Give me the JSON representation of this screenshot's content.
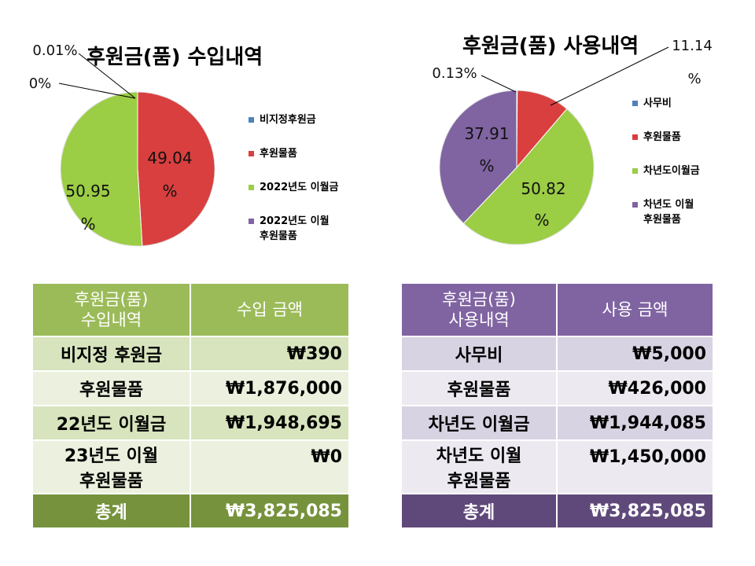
{
  "income_title": "후원금(품) 수입내역",
  "usage_title": "후원금(품) 사용내역",
  "chart_data": [
    {
      "type": "pie",
      "title": "후원금(품) 수입내역",
      "labels": [
        "비지정후원금",
        "후원물품",
        "2022년도 이월금",
        "2022년도 이월 후원물품"
      ],
      "values": [
        0.01,
        49.04,
        50.95,
        0
      ],
      "data_labels": [
        {
          "line1": "0.01%",
          "line2": ""
        },
        {
          "line1": "49.04",
          "line2": "%"
        },
        {
          "line1": "50.95",
          "line2": "%"
        },
        {
          "line1": "0%",
          "line2": ""
        }
      ],
      "colors": [
        "#4f81bd",
        "#d93f3f",
        "#9bcd45",
        "#8064a2"
      ],
      "legend_position": "right"
    },
    {
      "type": "pie",
      "title": "후원금(품) 사용내역",
      "labels": [
        "사무비",
        "후원물품",
        "차년도이월금",
        "차년도 이월 후원물품"
      ],
      "values": [
        0.13,
        11.14,
        50.82,
        37.91
      ],
      "data_labels": [
        {
          "line1": "0.13%",
          "line2": ""
        },
        {
          "line1": "11.14",
          "line2": "%"
        },
        {
          "line1": "50.82",
          "line2": "%"
        },
        {
          "line1": "37.91",
          "line2": "%"
        }
      ],
      "colors": [
        "#4f81bd",
        "#d93f3f",
        "#9bcd45",
        "#8064a2"
      ],
      "legend_position": "right"
    }
  ],
  "income_legend": [
    {
      "label_line1": "비지정후원금",
      "label_line2": ""
    },
    {
      "label_line1": "후원물품",
      "label_line2": ""
    },
    {
      "label_line1": "2022년도 이월금",
      "label_line2": ""
    },
    {
      "label_line1": "2022년도 이월",
      "label_line2": "후원물품"
    }
  ],
  "usage_legend": [
    {
      "label_line1": "사무비",
      "label_line2": ""
    },
    {
      "label_line1": "후원물품",
      "label_line2": ""
    },
    {
      "label_line1": "차년도이월금",
      "label_line2": ""
    },
    {
      "label_line1": "차년도 이월",
      "label_line2": "후원물품"
    }
  ],
  "income_table": {
    "header": {
      "col1_line1": "후원금(품)",
      "col1_line2": "수입내역",
      "col2": "수입 금액"
    },
    "rows": [
      {
        "label_line1": "비지정 후원금",
        "label_line2": "",
        "amount": "₩390"
      },
      {
        "label_line1": "후원물품",
        "label_line2": "",
        "amount": "₩1,876,000"
      },
      {
        "label_line1": "22년도 이월금",
        "label_line2": "",
        "amount": "₩1,948,695"
      },
      {
        "label_line1": "23년도 이월",
        "label_line2": "후원물품",
        "amount": "₩0"
      }
    ],
    "total": {
      "label": "총계",
      "amount": "₩3,825,085"
    }
  },
  "usage_table": {
    "header": {
      "col1_line1": "후원금(품)",
      "col1_line2": "사용내역",
      "col2": "사용 금액"
    },
    "rows": [
      {
        "label_line1": "사무비",
        "label_line2": "",
        "amount": "₩5,000"
      },
      {
        "label_line1": "후원물품",
        "label_line2": "",
        "amount": "₩426,000"
      },
      {
        "label_line1": "차년도 이월금",
        "label_line2": "",
        "amount": "₩1,944,085"
      },
      {
        "label_line1": "차년도 이월",
        "label_line2": "후원물품",
        "amount": "₩1,450,000"
      }
    ],
    "total": {
      "label": "총계",
      "amount": "₩3,825,085"
    }
  },
  "theme": {
    "income_header_bg": "#9bbb59",
    "income_row_odd_bg": "#d7e4bd",
    "income_row_even_bg": "#ebf1de",
    "income_total_bg": "#76923c",
    "usage_header_bg": "#8064a2",
    "usage_row_odd_bg": "#d8d3e2",
    "usage_row_even_bg": "#ece9f1",
    "usage_total_bg": "#5f497a"
  }
}
